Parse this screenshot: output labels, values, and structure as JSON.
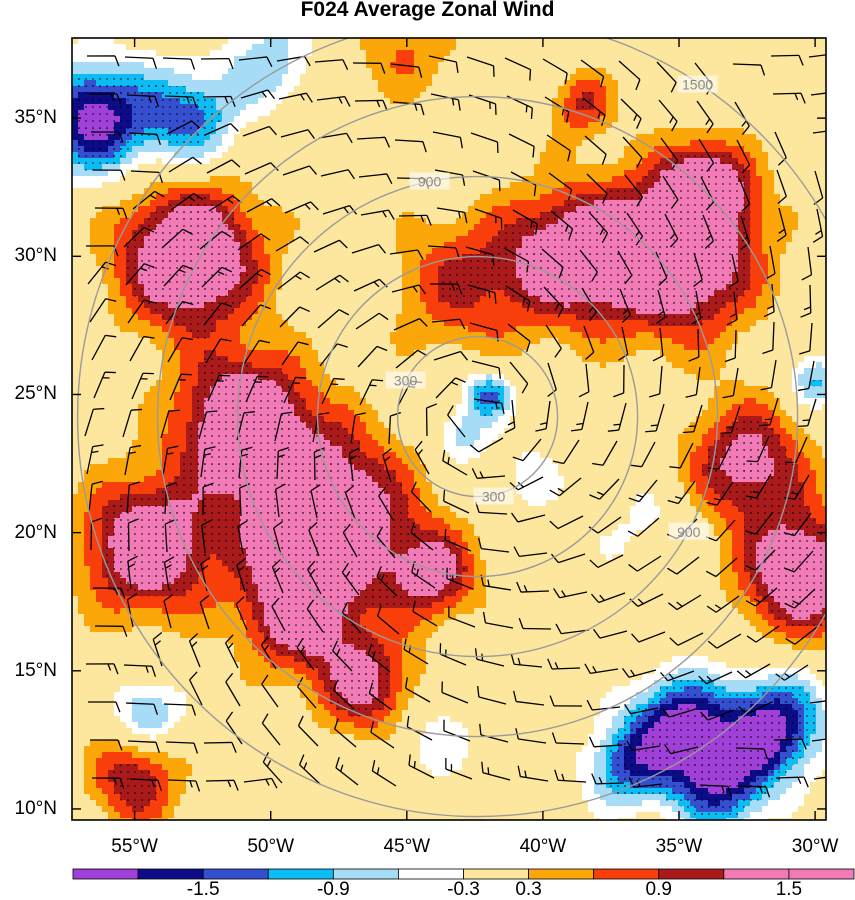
{
  "chart_data": {
    "type": "heatmap",
    "title": "F024 Average Zonal Wind",
    "x_ticks": [
      "55°W",
      "50°W",
      "45°W",
      "40°W",
      "35°W",
      "30°W"
    ],
    "x_values": [
      -55,
      -50,
      -45,
      -40,
      -35,
      -30
    ],
    "y_ticks": [
      "35°N",
      "30°N",
      "25°N",
      "20°N",
      "15°N",
      "10°N"
    ],
    "y_values": [
      35,
      30,
      25,
      20,
      15,
      10
    ],
    "xlim": [
      -57.3,
      -29.6
    ],
    "ylim": [
      9.6,
      37.9
    ],
    "storm_center": {
      "lon": -42.4,
      "lat": 24.2
    },
    "range_rings": {
      "values": [
        300,
        600,
        900,
        1200,
        1500
      ],
      "labeled": [
        "300",
        "900",
        "1500"
      ],
      "color": "#9a9a9a"
    },
    "colorbar": {
      "levels": [
        -1.8,
        -1.5,
        -1.2,
        -0.9,
        -0.6,
        -0.3,
        0.3,
        0.6,
        0.9,
        1.2,
        1.5
      ],
      "labels": [
        "-1.5",
        "-0.9",
        "-0.3",
        "0.3",
        "0.9",
        "1.5"
      ],
      "label_values": [
        -1.5,
        -0.9,
        -0.3,
        0.3,
        0.9,
        1.5
      ],
      "colors": [
        "#a040d8",
        "#0c0c88",
        "#3450d0",
        "#0cbcf4",
        "#a6dcf6",
        "#ffffff",
        "#fde69e",
        "#fba70a",
        "#f83e0a",
        "#aa1a1a",
        "#f27ab6",
        "#f27ab6"
      ]
    },
    "stipple": "dots where |value| >= 0.9",
    "field_centers": [
      {
        "lon": -53,
        "lat": 30.0,
        "amp": 2.0,
        "r": 2.6
      },
      {
        "lon": -51,
        "lat": 24.0,
        "amp": 1.9,
        "r": 2.4
      },
      {
        "lon": -48,
        "lat": 20.5,
        "amp": 2.1,
        "r": 3.0
      },
      {
        "lon": -54.5,
        "lat": 19.5,
        "amp": 1.8,
        "r": 2.4
      },
      {
        "lon": -49,
        "lat": 17.0,
        "amp": 1.4,
        "r": 2.0
      },
      {
        "lon": -46.5,
        "lat": 14.5,
        "amp": 1.3,
        "r": 1.8
      },
      {
        "lon": -44,
        "lat": 18.5,
        "amp": 1.3,
        "r": 1.6
      },
      {
        "lon": -35,
        "lat": 30.0,
        "amp": 2.0,
        "r": 2.8
      },
      {
        "lon": -39,
        "lat": 30.0,
        "amp": 1.6,
        "r": 2.4
      },
      {
        "lon": -34,
        "lat": 32.5,
        "amp": 1.5,
        "r": 1.6
      },
      {
        "lon": -32.5,
        "lat": 22.5,
        "amp": 1.4,
        "r": 2.2
      },
      {
        "lon": -30.5,
        "lat": 18.5,
        "amp": 1.8,
        "r": 2.2
      },
      {
        "lon": -43,
        "lat": 29.0,
        "amp": 0.9,
        "r": 2.5
      },
      {
        "lon": -38.5,
        "lat": 35.5,
        "amp": 0.9,
        "r": 1.2
      },
      {
        "lon": -55,
        "lat": 11.0,
        "amp": 1.2,
        "r": 1.6
      },
      {
        "lon": -45,
        "lat": 37.5,
        "amp": 0.6,
        "r": 2.0
      },
      {
        "lon": -42.0,
        "lat": 25.0,
        "amp": -1.3,
        "r": 0.9
      },
      {
        "lon": -43.0,
        "lat": 23.5,
        "amp": -0.8,
        "r": 1.0
      },
      {
        "lon": -40.5,
        "lat": 22.0,
        "amp": -0.5,
        "r": 1.2
      },
      {
        "lon": -56.5,
        "lat": 35.0,
        "amp": -2.0,
        "r": 2.0
      },
      {
        "lon": -53,
        "lat": 35.0,
        "amp": -1.3,
        "r": 1.8
      },
      {
        "lon": -50,
        "lat": 37.0,
        "amp": -0.8,
        "r": 1.6
      },
      {
        "lon": -35,
        "lat": 13.0,
        "amp": -1.9,
        "r": 1.8
      },
      {
        "lon": -31.5,
        "lat": 13.0,
        "amp": -1.9,
        "r": 1.8
      },
      {
        "lon": -33.5,
        "lat": 11.0,
        "amp": -1.6,
        "r": 1.8
      },
      {
        "lon": -37,
        "lat": 11.5,
        "amp": -1.2,
        "r": 1.5
      },
      {
        "lon": -54.5,
        "lat": 13.5,
        "amp": -1.0,
        "r": 1.2
      },
      {
        "lon": -44,
        "lat": 12.5,
        "amp": -0.5,
        "r": 1.5
      },
      {
        "lon": -36,
        "lat": 20.0,
        "amp": -0.4,
        "r": 2.0
      },
      {
        "lon": -30,
        "lat": 25.5,
        "amp": -1.0,
        "r": 1.0
      }
    ]
  }
}
